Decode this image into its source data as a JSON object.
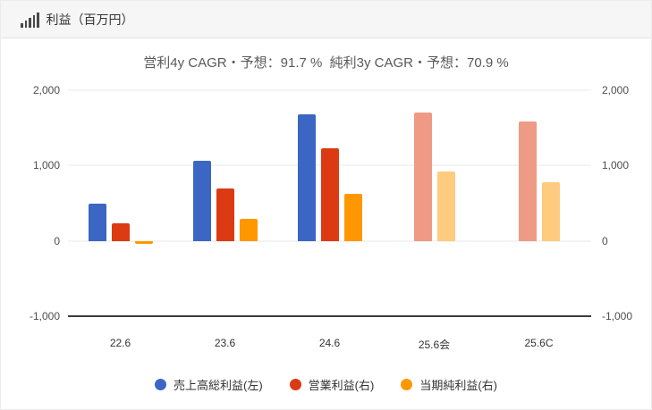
{
  "header": {
    "title": "利益（百万円）",
    "icon": "bar-signal-icon"
  },
  "chart_data": {
    "type": "bar",
    "title": "営利4y CAGR・予想：91.7 %  純利3y CAGR・予想：70.9 %",
    "unit": "百万円",
    "categories": [
      "22.6",
      "23.6",
      "24.6",
      "25.6会",
      "25.6C"
    ],
    "forecast_categories": [
      "25.6会",
      "25.6C"
    ],
    "series": [
      {
        "name": "売上高総利益(左)",
        "axis": "left",
        "color": "#3b66c4",
        "values": [
          490,
          1060,
          1680,
          null,
          null
        ]
      },
      {
        "name": "営業利益(右)",
        "axis": "right",
        "color": "#db3a13",
        "forecast_color": "#ee9a84",
        "values": [
          230,
          690,
          1230,
          1700,
          1580
        ]
      },
      {
        "name": "当期純利益(右)",
        "axis": "right",
        "color": "#ff9800",
        "forecast_color": "#ffcb7f",
        "values": [
          -45,
          290,
          630,
          920,
          780
        ]
      }
    ],
    "y_axis": {
      "min": -1000,
      "max": 2000,
      "sides": [
        "left",
        "right"
      ],
      "gridlines": [
        {
          "value": 2000,
          "label": "2,000"
        },
        {
          "value": 1000,
          "label": "1,000"
        },
        {
          "value": 0,
          "label": "0"
        },
        {
          "value": -1000,
          "label": "-1,000"
        }
      ]
    },
    "legend_position": "bottom",
    "grid": true
  }
}
